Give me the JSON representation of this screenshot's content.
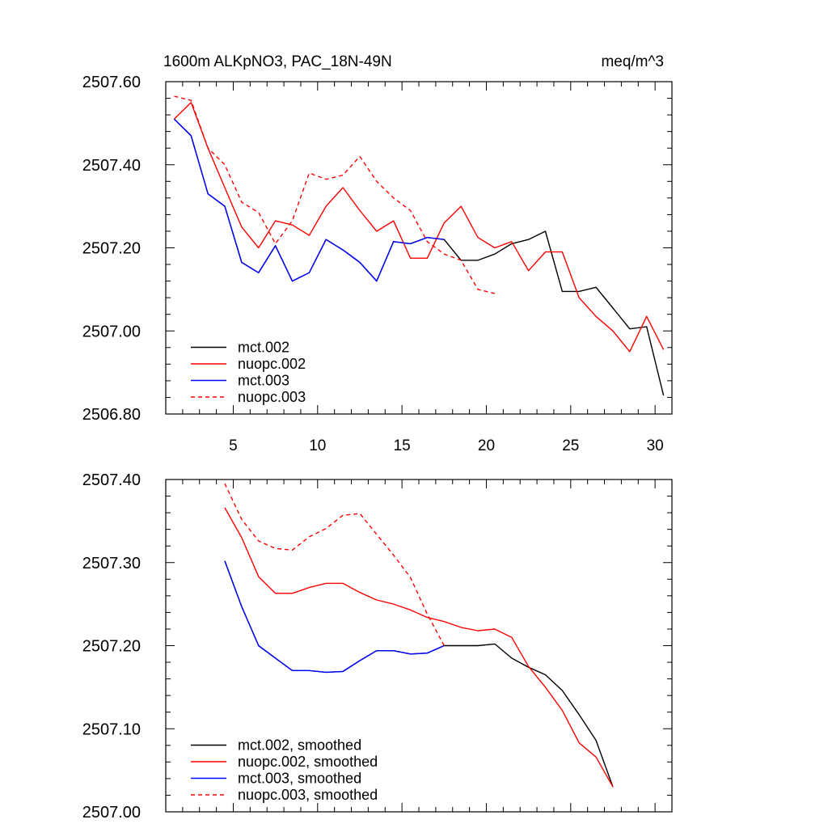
{
  "figure": {
    "title_left": "1600m ALKpNO3, PAC_18N-49N",
    "title_right": "meq/m^3"
  },
  "chart_data": [
    {
      "type": "line",
      "title": "1600m ALKpNO3, PAC_18N-49N",
      "units": "meq/m^3",
      "xlim": [
        1,
        31
      ],
      "ylim": [
        2506.8,
        2507.6
      ],
      "x_ticks": [
        5,
        10,
        15,
        20,
        25,
        30
      ],
      "x_tick_labels": [
        "5",
        "10",
        "15",
        "20",
        "25",
        "30"
      ],
      "y_ticks": [
        2506.8,
        2507.0,
        2507.2,
        2507.4,
        2507.6
      ],
      "y_tick_labels": [
        "2506.80",
        "2507.00",
        "2507.20",
        "2507.40",
        "2507.60"
      ],
      "legend_position": "bottom-left",
      "series": [
        {
          "name": "mct.002",
          "color": "#000000",
          "dash": "solid",
          "x": [
            1.5,
            2.5,
            3.5,
            4.5,
            5.5,
            6.5,
            7.5,
            8.5,
            9.5,
            10.5,
            11.5,
            12.5,
            13.5,
            14.5,
            15.5,
            16.5,
            17.5,
            18.5,
            19.5,
            20.5,
            21.5,
            22.5,
            23.5,
            24.5,
            25.5,
            26.5,
            27.5,
            28.5,
            29.5,
            30.5
          ],
          "values": [
            2507.51,
            2507.47,
            2507.33,
            2507.3,
            2507.165,
            2507.14,
            2507.205,
            2507.12,
            2507.14,
            2507.22,
            2507.195,
            2507.165,
            2507.12,
            2507.215,
            2507.21,
            2507.225,
            2507.22,
            2507.17,
            2507.17,
            2507.185,
            2507.21,
            2507.22,
            2507.24,
            2507.095,
            2507.095,
            2507.105,
            2507.055,
            2507.005,
            2507.01,
            2506.845
          ]
        },
        {
          "name": "nuopc.002",
          "color": "#ff0000",
          "dash": "solid",
          "x": [
            1.5,
            2.5,
            3.5,
            4.5,
            5.5,
            6.5,
            7.5,
            8.5,
            9.5,
            10.5,
            11.5,
            12.5,
            13.5,
            14.5,
            15.5,
            16.5,
            17.5,
            18.5,
            19.5,
            20.5,
            21.5,
            22.5,
            23.5,
            24.5,
            25.5,
            26.5,
            27.5,
            28.5,
            29.5,
            30.5
          ],
          "values": [
            2507.51,
            2507.55,
            2507.44,
            2507.345,
            2507.25,
            2507.2,
            2507.265,
            2507.255,
            2507.23,
            2507.3,
            2507.345,
            2507.29,
            2507.24,
            2507.265,
            2507.175,
            2507.175,
            2507.26,
            2507.3,
            2507.225,
            2507.2,
            2507.215,
            2507.145,
            2507.19,
            2507.19,
            2507.08,
            2507.035,
            2507.0,
            2506.95,
            2507.035,
            2506.955
          ]
        },
        {
          "name": "mct.003",
          "color": "#0000ff",
          "dash": "solid",
          "x": [
            1.5,
            2.5,
            3.5,
            4.5,
            5.5,
            6.5,
            7.5,
            8.5,
            9.5,
            10.5,
            11.5,
            12.5,
            13.5,
            14.5,
            15.5,
            16.5,
            17.5
          ],
          "values": [
            2507.51,
            2507.47,
            2507.33,
            2507.3,
            2507.165,
            2507.14,
            2507.205,
            2507.12,
            2507.14,
            2507.22,
            2507.195,
            2507.165,
            2507.12,
            2507.215,
            2507.21,
            2507.225,
            2507.22
          ]
        },
        {
          "name": "nuopc.003",
          "color": "#ff0000",
          "dash": "dashed",
          "x": [
            1.5,
            2.5,
            3.5,
            4.5,
            5.5,
            6.5,
            7.5,
            8.5,
            9.5,
            10.5,
            11.5,
            12.5,
            13.5,
            14.5,
            15.5,
            16.5,
            17.5,
            18.5,
            19.5,
            20.5
          ],
          "values": [
            2507.565,
            2507.555,
            2507.44,
            2507.4,
            2507.31,
            2507.285,
            2507.21,
            2507.265,
            2507.38,
            2507.365,
            2507.375,
            2507.42,
            2507.36,
            2507.32,
            2507.29,
            2507.215,
            2507.185,
            2507.17,
            2507.1,
            2507.09
          ]
        }
      ]
    },
    {
      "type": "line",
      "title": "",
      "xlim": [
        1,
        31
      ],
      "ylim": [
        2507.0,
        2507.4
      ],
      "x_ticks": [
        5,
        10,
        15,
        20,
        25,
        30
      ],
      "x_tick_labels": [],
      "y_ticks": [
        2507.0,
        2507.1,
        2507.2,
        2507.3,
        2507.4
      ],
      "y_tick_labels": [
        "2507.00",
        "2507.10",
        "2507.20",
        "2507.30",
        "2507.40"
      ],
      "legend_position": "bottom-left",
      "series": [
        {
          "name": "mct.002, smoothed",
          "color": "#000000",
          "dash": "solid",
          "x": [
            4.5,
            5.5,
            6.5,
            7.5,
            8.5,
            9.5,
            10.5,
            11.5,
            12.5,
            13.5,
            14.5,
            15.5,
            16.5,
            17.5,
            18.5,
            19.5,
            20.5,
            21.5,
            22.5,
            23.5,
            24.5,
            25.5,
            26.5,
            27.5
          ],
          "values": [
            2507.302,
            2507.247,
            2507.2,
            2507.185,
            2507.17,
            2507.17,
            2507.168,
            2507.169,
            2507.182,
            2507.194,
            2507.194,
            2507.19,
            2507.191,
            2507.2,
            2507.2,
            2507.2,
            2507.202,
            2507.185,
            2507.174,
            2507.165,
            2507.146,
            2507.117,
            2507.086,
            2507.03
          ]
        },
        {
          "name": "nuopc.002, smoothed",
          "color": "#ff0000",
          "dash": "solid",
          "x": [
            4.5,
            5.5,
            6.5,
            7.5,
            8.5,
            9.5,
            10.5,
            11.5,
            12.5,
            13.5,
            14.5,
            15.5,
            16.5,
            17.5,
            18.5,
            19.5,
            20.5,
            21.5,
            22.5,
            23.5,
            24.5,
            25.5,
            26.5,
            27.5
          ],
          "values": [
            2507.366,
            2507.33,
            2507.283,
            2507.263,
            2507.263,
            2507.27,
            2507.275,
            2507.275,
            2507.264,
            2507.255,
            2507.25,
            2507.243,
            2507.234,
            2507.229,
            2507.222,
            2507.218,
            2507.22,
            2507.21,
            2507.175,
            2507.15,
            2507.122,
            2507.083,
            2507.066,
            2507.03
          ]
        },
        {
          "name": "mct.003, smoothed",
          "color": "#0000ff",
          "dash": "solid",
          "x": [
            4.5,
            5.5,
            6.5,
            7.5,
            8.5,
            9.5,
            10.5,
            11.5,
            12.5,
            13.5,
            14.5,
            15.5,
            16.5,
            17.5
          ],
          "values": [
            2507.302,
            2507.247,
            2507.2,
            2507.185,
            2507.17,
            2507.17,
            2507.168,
            2507.169,
            2507.182,
            2507.194,
            2507.194,
            2507.19,
            2507.191,
            2507.2
          ]
        },
        {
          "name": "nuopc.003, smoothed",
          "color": "#ff0000",
          "dash": "dashed",
          "x": [
            4.5,
            5.5,
            6.5,
            7.5,
            8.5,
            9.5,
            10.5,
            11.5,
            12.5,
            13.5,
            14.5,
            15.5,
            16.5,
            17.5
          ],
          "values": [
            2507.395,
            2507.352,
            2507.326,
            2507.317,
            2507.315,
            2507.331,
            2507.341,
            2507.357,
            2507.359,
            2507.334,
            2507.309,
            2507.282,
            2507.238,
            2507.2
          ]
        }
      ]
    }
  ]
}
